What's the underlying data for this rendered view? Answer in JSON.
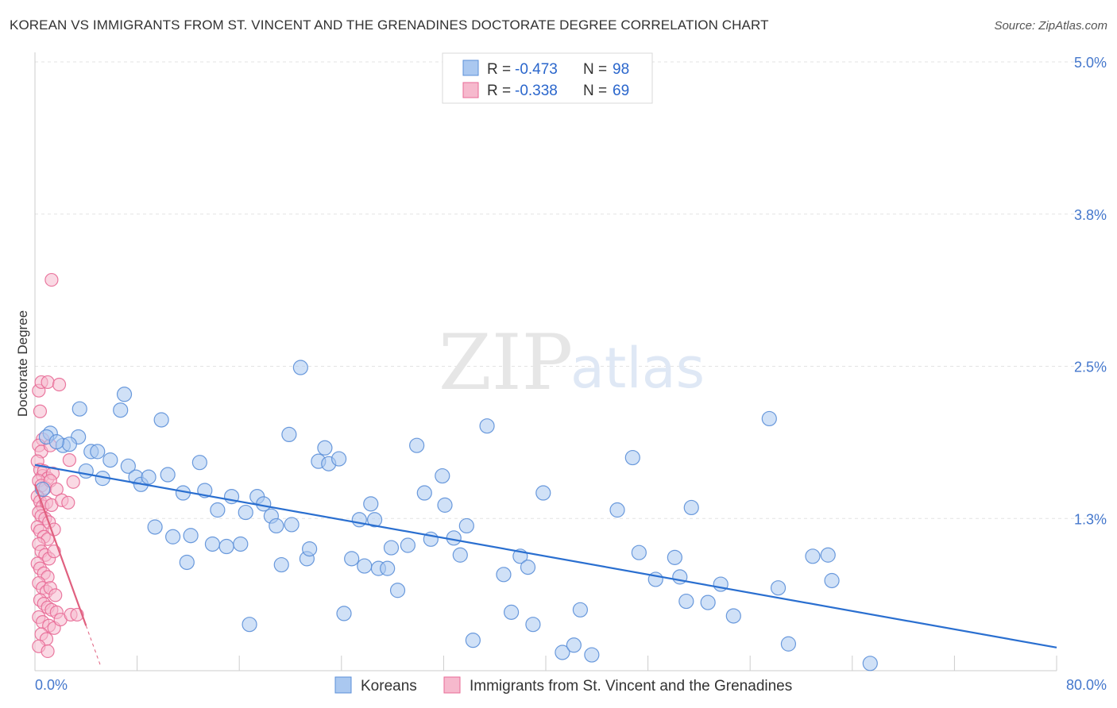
{
  "header": {
    "title": "KOREAN VS IMMIGRANTS FROM ST. VINCENT AND THE GRENADINES DOCTORATE DEGREE CORRELATION CHART",
    "source": "Source: ZipAtlas.com"
  },
  "watermark": {
    "zip": "ZIP",
    "atlas": "atlas"
  },
  "colors": {
    "blue": "#5b8fd8",
    "blue_fill": "#aac8f0",
    "blue_line": "#2a6fd0",
    "pink": "#e86a96",
    "pink_fill": "#f6b9cd",
    "pink_line": "#e0607f",
    "grid": "#e3e3e3"
  },
  "chart_data": {
    "type": "scatter",
    "title": "KOREAN VS IMMIGRANTS FROM ST. VINCENT AND THE GRENADINES DOCTORATE DEGREE CORRELATION CHART",
    "xlabel": "",
    "ylabel": "Doctorate Degree",
    "xlim": [
      0,
      80
    ],
    "ylim": [
      0,
      5.0
    ],
    "x_tick_labels": [
      {
        "value": 0,
        "label": "0.0%"
      },
      {
        "value": 80,
        "label": "80.0%"
      }
    ],
    "y_tick_labels": [
      {
        "value": 5.0,
        "label": "5.0%"
      },
      {
        "value": 3.75,
        "label": "3.8%"
      },
      {
        "value": 2.5,
        "label": "2.5%"
      },
      {
        "value": 1.25,
        "label": "1.3%"
      }
    ],
    "legend": [
      {
        "series": "Koreans",
        "r_label": "R = ",
        "r": "-0.473",
        "n_label": "N = ",
        "n": "98"
      },
      {
        "series": "Immigrants from St. Vincent and the Grenadines",
        "r_label": "R = ",
        "r": "-0.338",
        "n_label": "N = ",
        "n": "69"
      }
    ],
    "series": [
      {
        "name": "Koreans",
        "trend": {
          "x0": 0,
          "y0": 1.69,
          "x1": 80,
          "y1": 0.19
        },
        "points": [
          [
            1.2,
            1.95
          ],
          [
            2.2,
            1.85
          ],
          [
            3.4,
            1.92
          ],
          [
            3.5,
            2.15
          ],
          [
            4.0,
            1.64
          ],
          [
            4.4,
            1.8
          ],
          [
            4.9,
            1.8
          ],
          [
            5.3,
            1.58
          ],
          [
            5.9,
            1.73
          ],
          [
            6.7,
            2.14
          ],
          [
            7.0,
            2.27
          ],
          [
            7.3,
            1.68
          ],
          [
            7.9,
            1.59
          ],
          [
            8.3,
            1.53
          ],
          [
            8.9,
            1.59
          ],
          [
            9.4,
            1.18
          ],
          [
            9.9,
            2.06
          ],
          [
            10.4,
            1.61
          ],
          [
            10.8,
            1.1
          ],
          [
            11.6,
            1.46
          ],
          [
            11.9,
            0.89
          ],
          [
            12.2,
            1.11
          ],
          [
            12.9,
            1.71
          ],
          [
            13.3,
            1.48
          ],
          [
            13.9,
            1.04
          ],
          [
            14.3,
            1.32
          ],
          [
            15.0,
            1.02
          ],
          [
            15.4,
            1.43
          ],
          [
            16.1,
            1.04
          ],
          [
            16.5,
            1.3
          ],
          [
            16.8,
            0.38
          ],
          [
            17.4,
            1.43
          ],
          [
            17.9,
            1.37
          ],
          [
            18.5,
            1.27
          ],
          [
            18.9,
            1.19
          ],
          [
            19.3,
            0.87
          ],
          [
            19.9,
            1.94
          ],
          [
            20.1,
            1.2
          ],
          [
            20.8,
            2.49
          ],
          [
            21.3,
            0.92
          ],
          [
            21.5,
            1.0
          ],
          [
            22.2,
            1.72
          ],
          [
            22.7,
            1.83
          ],
          [
            23.0,
            1.7
          ],
          [
            23.8,
            1.74
          ],
          [
            24.2,
            0.47
          ],
          [
            24.8,
            0.92
          ],
          [
            25.4,
            1.24
          ],
          [
            25.8,
            0.86
          ],
          [
            26.3,
            1.37
          ],
          [
            26.6,
            1.24
          ],
          [
            26.9,
            0.84
          ],
          [
            27.6,
            0.84
          ],
          [
            27.9,
            1.01
          ],
          [
            28.4,
            0.66
          ],
          [
            29.2,
            1.03
          ],
          [
            29.9,
            1.85
          ],
          [
            30.5,
            1.46
          ],
          [
            31.0,
            1.08
          ],
          [
            31.9,
            1.6
          ],
          [
            32.1,
            1.36
          ],
          [
            32.8,
            1.09
          ],
          [
            33.3,
            0.95
          ],
          [
            33.8,
            1.19
          ],
          [
            34.3,
            0.25
          ],
          [
            35.4,
            2.01
          ],
          [
            36.7,
            0.79
          ],
          [
            37.3,
            0.48
          ],
          [
            38.0,
            0.94
          ],
          [
            38.6,
            0.85
          ],
          [
            39.0,
            0.38
          ],
          [
            39.8,
            1.46
          ],
          [
            41.3,
            0.15
          ],
          [
            42.2,
            0.21
          ],
          [
            42.7,
            0.5
          ],
          [
            43.6,
            0.13
          ],
          [
            45.6,
            1.32
          ],
          [
            46.8,
            1.75
          ],
          [
            47.3,
            0.97
          ],
          [
            48.6,
            0.75
          ],
          [
            50.1,
            0.93
          ],
          [
            50.5,
            0.77
          ],
          [
            51.0,
            0.57
          ],
          [
            51.4,
            1.34
          ],
          [
            52.7,
            0.56
          ],
          [
            53.7,
            0.71
          ],
          [
            54.7,
            0.45
          ],
          [
            57.5,
            2.07
          ],
          [
            58.2,
            0.68
          ],
          [
            59.0,
            0.22
          ],
          [
            60.9,
            0.94
          ],
          [
            62.1,
            0.95
          ],
          [
            62.4,
            0.74
          ],
          [
            65.4,
            0.06
          ],
          [
            0.9,
            1.92
          ],
          [
            0.6,
            1.49
          ],
          [
            2.7,
            1.86
          ],
          [
            1.7,
            1.88
          ]
        ]
      },
      {
        "name": "Immigrants from St. Vincent and the Grenadines",
        "trend": {
          "x0": 0,
          "y0": 1.53,
          "x1": 4.0,
          "y1": 0.37
        },
        "trend_extension": {
          "x0": 4.0,
          "y0": 0.37,
          "x1": 6.0,
          "y1": -0.21
        },
        "points": [
          [
            0.3,
            2.3
          ],
          [
            0.5,
            2.37
          ],
          [
            1.0,
            2.37
          ],
          [
            0.4,
            2.13
          ],
          [
            0.6,
            1.9
          ],
          [
            0.3,
            1.85
          ],
          [
            0.5,
            1.8
          ],
          [
            1.2,
            1.85
          ],
          [
            0.2,
            1.72
          ],
          [
            0.4,
            1.65
          ],
          [
            0.6,
            1.6
          ],
          [
            0.7,
            1.64
          ],
          [
            1.0,
            1.58
          ],
          [
            1.4,
            1.62
          ],
          [
            0.3,
            1.56
          ],
          [
            0.5,
            1.52
          ],
          [
            0.8,
            1.5
          ],
          [
            1.2,
            1.56
          ],
          [
            0.2,
            1.43
          ],
          [
            0.4,
            1.39
          ],
          [
            0.6,
            1.35
          ],
          [
            0.9,
            1.38
          ],
          [
            1.3,
            1.36
          ],
          [
            0.3,
            1.3
          ],
          [
            0.5,
            1.27
          ],
          [
            0.8,
            1.25
          ],
          [
            1.1,
            1.22
          ],
          [
            0.2,
            1.18
          ],
          [
            0.4,
            1.15
          ],
          [
            0.7,
            1.1
          ],
          [
            1.0,
            1.08
          ],
          [
            1.5,
            1.16
          ],
          [
            0.3,
            1.04
          ],
          [
            0.5,
            0.98
          ],
          [
            0.8,
            0.95
          ],
          [
            1.1,
            0.92
          ],
          [
            1.5,
            0.98
          ],
          [
            0.2,
            0.88
          ],
          [
            0.4,
            0.84
          ],
          [
            0.7,
            0.8
          ],
          [
            1.0,
            0.77
          ],
          [
            0.3,
            0.72
          ],
          [
            0.6,
            0.68
          ],
          [
            0.9,
            0.65
          ],
          [
            1.2,
            0.68
          ],
          [
            1.6,
            0.62
          ],
          [
            0.4,
            0.58
          ],
          [
            0.7,
            0.55
          ],
          [
            1.0,
            0.52
          ],
          [
            1.3,
            0.5
          ],
          [
            1.7,
            0.48
          ],
          [
            0.3,
            0.44
          ],
          [
            0.6,
            0.4
          ],
          [
            1.1,
            0.37
          ],
          [
            1.5,
            0.35
          ],
          [
            2.0,
            0.42
          ],
          [
            0.5,
            0.3
          ],
          [
            0.9,
            0.26
          ],
          [
            0.3,
            0.2
          ],
          [
            1.0,
            0.16
          ],
          [
            1.3,
            3.21
          ],
          [
            1.7,
            1.49
          ],
          [
            2.1,
            1.4
          ],
          [
            2.6,
            1.38
          ],
          [
            3.0,
            1.55
          ],
          [
            2.7,
            1.73
          ],
          [
            1.9,
            2.35
          ],
          [
            2.8,
            0.46
          ],
          [
            3.3,
            0.46
          ]
        ]
      }
    ]
  }
}
